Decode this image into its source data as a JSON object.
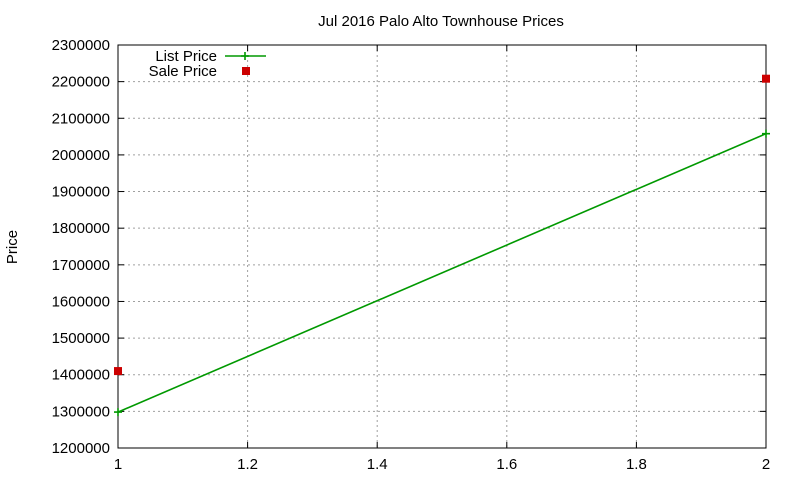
{
  "chart_data": {
    "type": "line",
    "title": "Jul 2016 Palo Alto Townhouse Prices",
    "xlabel": "",
    "ylabel": "Price",
    "xlim": [
      1,
      2
    ],
    "ylim": [
      1200000,
      2300000
    ],
    "x_ticks": [
      "1",
      "1.2",
      "1.4",
      "1.6",
      "1.8",
      "2"
    ],
    "x_tick_values": [
      1,
      1.2,
      1.4,
      1.6,
      1.8,
      2
    ],
    "y_ticks": [
      "1200000",
      "1300000",
      "1400000",
      "1500000",
      "1600000",
      "1700000",
      "1800000",
      "1900000",
      "2000000",
      "2100000",
      "2200000",
      "2300000"
    ],
    "y_tick_values": [
      1200000,
      1300000,
      1400000,
      1500000,
      1600000,
      1700000,
      1800000,
      1900000,
      2000000,
      2100000,
      2200000,
      2300000
    ],
    "grid": true,
    "legend_position": "top-left",
    "series": [
      {
        "name": "List Price",
        "style": "line-with-plus-markers",
        "color": "#009900",
        "x": [
          1,
          2
        ],
        "y": [
          1298000,
          2058000
        ]
      },
      {
        "name": "Sale Price",
        "style": "square-points",
        "color": "#cc0000",
        "x": [
          1,
          2
        ],
        "y": [
          1410000,
          2208000
        ]
      }
    ]
  }
}
